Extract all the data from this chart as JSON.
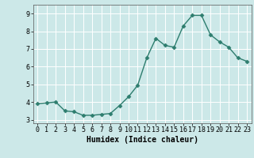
{
  "x": [
    0,
    1,
    2,
    3,
    4,
    5,
    6,
    7,
    8,
    9,
    10,
    11,
    12,
    13,
    14,
    15,
    16,
    17,
    18,
    19,
    20,
    21,
    22,
    23
  ],
  "y": [
    3.9,
    3.95,
    4.0,
    3.5,
    3.45,
    3.25,
    3.25,
    3.3,
    3.35,
    3.8,
    4.3,
    4.95,
    6.5,
    7.6,
    7.2,
    7.1,
    8.3,
    8.9,
    8.9,
    7.8,
    7.4,
    7.1,
    6.5,
    6.3
  ],
  "line_color": "#2d7d6e",
  "marker": "D",
  "marker_size": 2.5,
  "line_width": 1.0,
  "bg_color": "#cce8e8",
  "grid_color": "#ffffff",
  "xlabel": "Humidex (Indice chaleur)",
  "ylim": [
    2.8,
    9.5
  ],
  "xlim": [
    -0.5,
    23.5
  ],
  "yticks": [
    3,
    4,
    5,
    6,
    7,
    8,
    9
  ],
  "xticks": [
    0,
    1,
    2,
    3,
    4,
    5,
    6,
    7,
    8,
    9,
    10,
    11,
    12,
    13,
    14,
    15,
    16,
    17,
    18,
    19,
    20,
    21,
    22,
    23
  ],
  "label_fontsize": 7,
  "tick_fontsize": 6
}
